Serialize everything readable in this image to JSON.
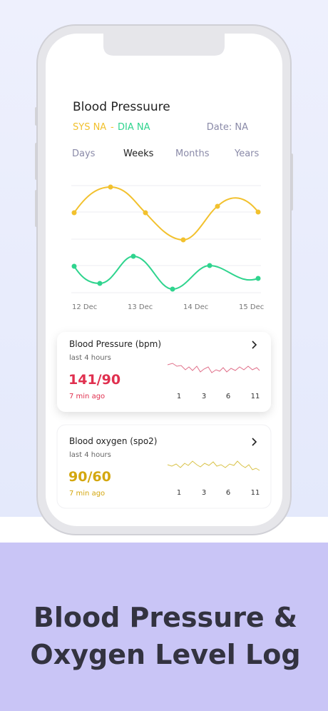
{
  "header": {
    "title": "Blood Pressuure",
    "sys": "SYS NA",
    "separator": "-",
    "dia": "DIA NA",
    "date": "Date: NA"
  },
  "tabs": {
    "items": [
      "Days",
      "Weeks",
      "Months",
      "Years"
    ],
    "selected": "Weeks"
  },
  "x_labels": [
    "12 Dec",
    "13 Dec",
    "14 Dec",
    "15 Dec"
  ],
  "cards": [
    {
      "title": "Blood Pressure (bpm)",
      "subtitle": "last 4 hours",
      "value": "141/90",
      "time": "7 min ago",
      "ticks": [
        "1",
        "3",
        "6",
        "11"
      ]
    },
    {
      "title": "Blood oxygen (spo2)",
      "subtitle": "last 4 hours",
      "value": "90/60",
      "time": "7 min ago",
      "ticks": [
        "1",
        "3",
        "6",
        "11"
      ]
    }
  ],
  "banner": {
    "lines": [
      "Blood Pressure &",
      "Oxygen Level Log"
    ]
  }
}
